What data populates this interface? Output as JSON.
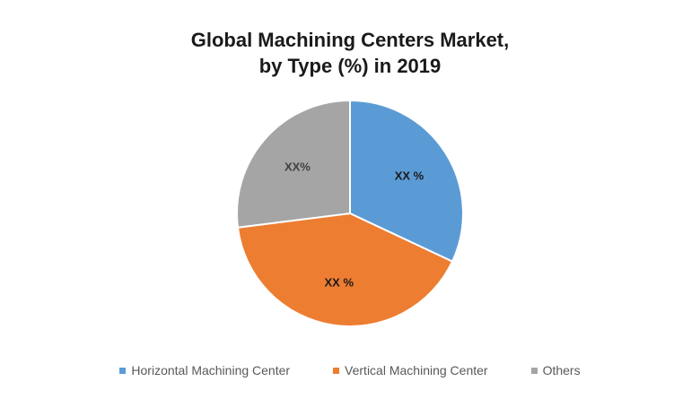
{
  "chart_data": {
    "type": "pie",
    "title": "Global Machining Centers Market, by Type (%) in 2019",
    "title_lines": [
      "Global Machining Centers Market,",
      "by Type (%) in 2019"
    ],
    "categories": [
      "Horizontal Machining Center",
      "Vertical Machining Center",
      "Others"
    ],
    "values": [
      32,
      41,
      27
    ],
    "data_labels": [
      "XX %",
      "XX %",
      "XX%"
    ],
    "colors": [
      "#5B9BD5",
      "#ED7D31",
      "#A5A5A5"
    ],
    "label_colors": [
      "#1a1a1a",
      "#1a1a1a",
      "#404040"
    ],
    "start_angle_deg": 0,
    "direction": "clockwise",
    "legend_position": "bottom",
    "center": [
      390,
      238
    ],
    "radius": 126
  },
  "title": {
    "line1": "Global Machining Centers Market,",
    "line2": "by Type (%) in 2019"
  },
  "legend": {
    "items": [
      {
        "label": "Horizontal Machining Center",
        "color": "#5B9BD5"
      },
      {
        "label": "Vertical Machining Center",
        "color": "#ED7D31"
      },
      {
        "label": "Others",
        "color": "#A5A5A5"
      }
    ]
  }
}
